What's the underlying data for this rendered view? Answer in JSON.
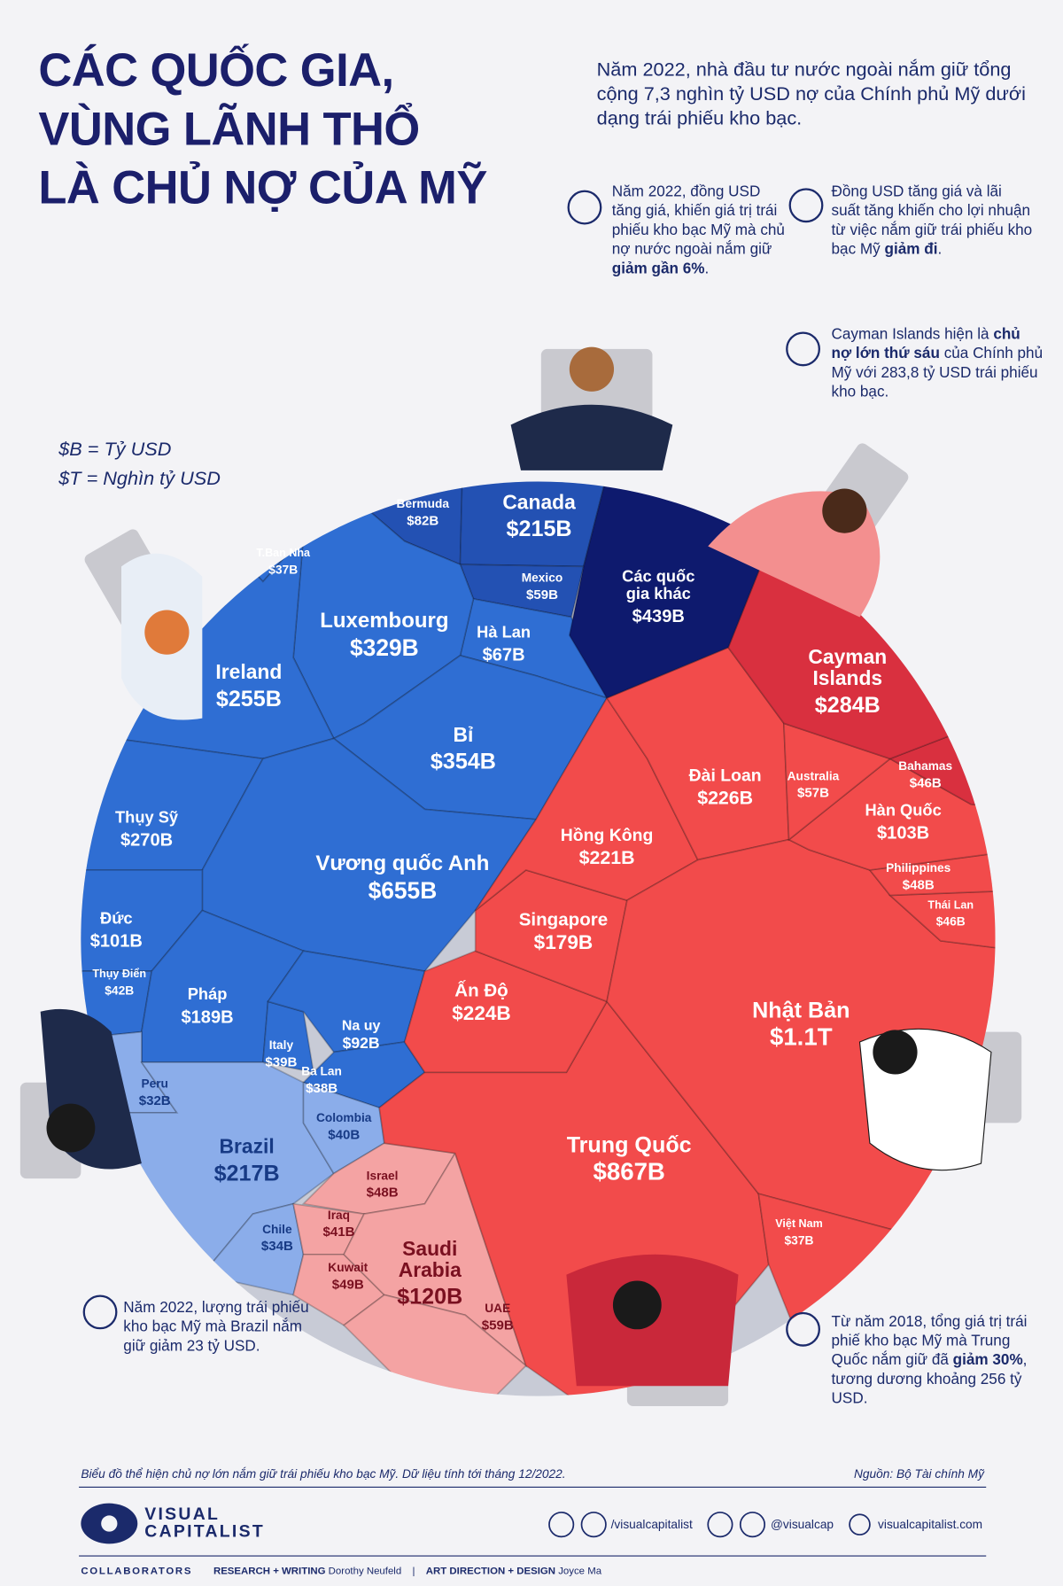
{
  "header": {
    "title": [
      "CÁC QUỐC GIA,",
      "VÙNG LÃNH THỔ",
      "LÀ CHỦ NỢ CỦA MỸ"
    ],
    "intro": "Năm 2022, nhà đầu tư nước ngoài nắm giữ tổng cộng 7,3 nghìn tỷ USD nợ của Chính phủ Mỹ dưới dạng trái phiếu kho bạc."
  },
  "units": [
    "$B = Tỷ USD",
    "$T = Nghìn tỷ USD"
  ],
  "notes": [
    [
      {
        "text": "Năm 2022, đồng USD tăng giá, khiến giá trị trái phiếu kho bạc Mỹ mà chủ nợ nước ngoài nắm giữ ",
        "bold": false
      },
      {
        "text": "giảm gần 6%",
        "bold": true
      },
      {
        "text": ".",
        "bold": false
      }
    ],
    [
      {
        "text": "Đồng USD tăng giá và lãi suất tăng khiến cho lợi nhuận từ việc nắm giữ trái phiếu kho bạc Mỹ ",
        "bold": false
      },
      {
        "text": "giảm đi",
        "bold": true
      },
      {
        "text": ".",
        "bold": false
      }
    ],
    [
      {
        "text": "Cayman Islands hiện là ",
        "bold": false
      },
      {
        "text": "chủ nợ lớn thứ sáu",
        "bold": true
      },
      {
        "text": " của Chính phủ Mỹ với 283,8 tỷ USD trái phiếu kho bạc.",
        "bold": false
      }
    ],
    [
      {
        "text": "Năm 2022, lượng trái phiếu kho bạc Mỹ mà Brazil nắm giữ giảm 23 tỷ USD.",
        "bold": false
      }
    ],
    [
      {
        "text": "Từ năm 2018, tổng giá trị trái phiế kho bạc Mỹ mà Trung Quốc nắm giữ đã ",
        "bold": false
      },
      {
        "text": "giảm 30%",
        "bold": true
      },
      {
        "text": ", tương dương khoảng 256 tỷ USD.",
        "bold": false
      }
    ]
  ],
  "chart_data": {
    "type": "voronoi-treemap",
    "categories": [
      "Bermuda",
      "Canada",
      "Mexico",
      "Hà Lan",
      "T.Ban Nha",
      "Luxembourg",
      "Ireland",
      "Bỉ",
      "Thụy Sỹ",
      "Vương quốc Anh",
      "Đức",
      "Thụy Điển",
      "Pháp",
      "Italy",
      "Na uy",
      "Ba Lan",
      "Peru",
      "Brazil",
      "Colombia",
      "Chile",
      "Israel",
      "Iraq",
      "Kuwait",
      "Saudi Arabia",
      "UAE",
      "Trung Quốc",
      "Ấn Độ",
      "Singapore",
      "Hồng Kông",
      "Đài Loan",
      "Nhật Bản",
      "Việt Nam",
      "Thái Lan",
      "Philippines",
      "Hàn Quốc",
      "Australia",
      "Bahamas",
      "Cayman Islands",
      "Các quốc gia khác"
    ],
    "values": [
      82,
      215,
      59,
      67,
      37,
      329,
      255,
      354,
      270,
      655,
      101,
      42,
      189,
      39,
      92,
      38,
      32,
      217,
      40,
      34,
      48,
      41,
      49,
      120,
      59,
      867,
      224,
      179,
      221,
      226,
      1100,
      37,
      46,
      48,
      103,
      57,
      46,
      284,
      439
    ],
    "value_labels": [
      "$82B",
      "$215B",
      "$59B",
      "$67B",
      "$37B",
      "$329B",
      "$255B",
      "$354B",
      "$270B",
      "$655B",
      "$101B",
      "$42B",
      "$189B",
      "$39B",
      "$92B",
      "$38B",
      "$32B",
      "$217B",
      "$40B",
      "$34B",
      "$48B",
      "$41B",
      "$49B",
      "$120B",
      "$59B",
      "$867B",
      "$224B",
      "$179B",
      "$221B",
      "$226B",
      "$1.1T",
      "$37B",
      "$46B",
      "$48B",
      "$103B",
      "$57B",
      "$46B",
      "$284B",
      "$439B"
    ],
    "colors": [
      "#2351b3",
      "#2351b3",
      "#2351b3",
      "#2f6ed3",
      "#2f6ed3",
      "#2f6ed3",
      "#2f6ed3",
      "#2f6ed3",
      "#2f6ed3",
      "#2f6ed3",
      "#2f6ed3",
      "#2f6ed3",
      "#2f6ed3",
      "#2f6ed3",
      "#2f6ed3",
      "#2f6ed3",
      "#8badea",
      "#8badea",
      "#8badea",
      "#8badea",
      "#f4a3a3",
      "#f4a3a3",
      "#f4a3a3",
      "#f4a3a3",
      "#f4a3a3",
      "#f24b4b",
      "#f24b4b",
      "#f24b4b",
      "#f24b4b",
      "#f24b4b",
      "#f24b4b",
      "#f24b4b",
      "#f24b4b",
      "#f24b4b",
      "#f24b4b",
      "#f24b4b",
      "#d9303f",
      "#d9303f",
      "#0e1a6e"
    ]
  },
  "footer": {
    "caption": "Biểu đồ thể hiện chủ nợ lớn nắm giữ trái phiếu kho bạc Mỹ. Dữ liệu tính tới tháng 12/2022.",
    "source": "Nguồn: Bộ Tài chính Mỹ",
    "brand": [
      "VISUAL",
      "CAPITALIST"
    ],
    "social": [
      "/visualcapitalist",
      "@visualcap",
      "visualcapitalist.com"
    ],
    "collaborators": "COLLABORATORS",
    "research_role": "RESEARCH + WRITING",
    "research_name": "Dorothy Neufeld",
    "design_role": "ART DIRECTION + DESIGN",
    "design_name": "Joyce Ma"
  }
}
